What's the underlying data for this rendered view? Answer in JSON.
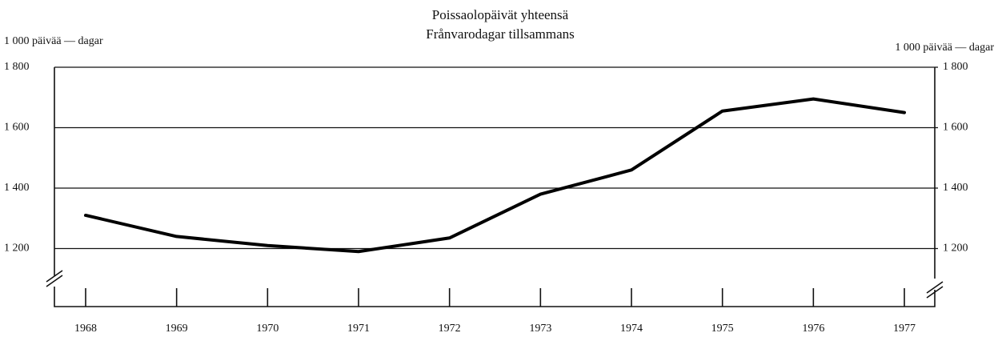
{
  "chart_data": {
    "type": "line",
    "title": "Poissaolopäivät yhteensä",
    "subtitle": "Frånvarodagar tillsammans",
    "y_label": "1 000 päivää — dagar",
    "y2_label": "1 000 päivää — dagar",
    "categories": [
      "1968",
      "1969",
      "1970",
      "1971",
      "1972",
      "1973",
      "1974",
      "1975",
      "1976",
      "1977"
    ],
    "series": [
      {
        "name": "Poissaolopäivät yhteensä",
        "color": "#000000",
        "values": [
          1310,
          1240,
          1210,
          1190,
          1235,
          1380,
          1460,
          1655,
          1695,
          1650
        ]
      }
    ],
    "ylim": [
      1000,
      1800
    ],
    "yticks": [
      {
        "value": 1200,
        "label": "1 200"
      },
      {
        "value": 1400,
        "label": "1 400"
      },
      {
        "value": 1600,
        "label": "1 600"
      },
      {
        "value": 1800,
        "label": "1 800"
      }
    ],
    "y2lim": [
      1000,
      1800
    ],
    "y2ticks": [
      {
        "value": 1200,
        "label": "1 200"
      },
      {
        "value": 1400,
        "label": "1 400"
      },
      {
        "value": 1600,
        "label": "1 600"
      },
      {
        "value": 1800,
        "label": "1 800"
      }
    ],
    "grid": true
  }
}
